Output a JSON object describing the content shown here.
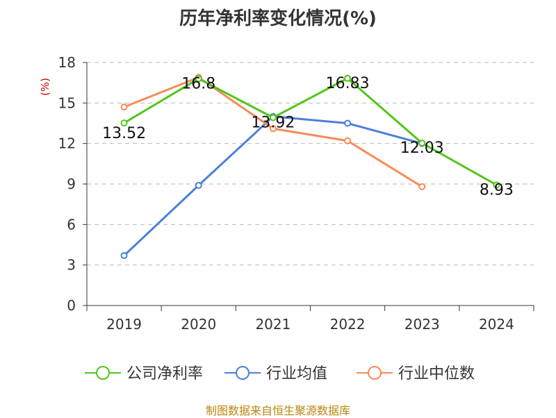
{
  "chart_data": {
    "type": "line",
    "title": "历年净利率变化情况(%)",
    "ylabel": "(%)",
    "xlabel": "",
    "categories": [
      "2019",
      "2020",
      "2021",
      "2022",
      "2023",
      "2024"
    ],
    "ylim": [
      0,
      18
    ],
    "yticks": [
      "0",
      "3",
      "6",
      "9",
      "12",
      "15",
      "18"
    ],
    "grid": "horizontal dashed",
    "legend_position": "bottom",
    "series": [
      {
        "name": "公司净利率",
        "color": "#52c41a",
        "values": [
          13.52,
          16.8,
          13.92,
          16.83,
          12.03,
          8.93
        ],
        "labels": [
          "13.52",
          "16.8",
          "13.92",
          "16.83",
          "12.03",
          "8.93"
        ]
      },
      {
        "name": "行业均值",
        "color": "#4a7fd9",
        "values": [
          3.7,
          8.9,
          14.0,
          13.5,
          12.0,
          null
        ]
      },
      {
        "name": "行业中位数",
        "color": "#f58b57",
        "values": [
          14.7,
          16.9,
          13.1,
          12.2,
          8.8,
          null
        ]
      }
    ]
  },
  "footer": {
    "source": "制图数据来自恒生聚源数据库"
  }
}
